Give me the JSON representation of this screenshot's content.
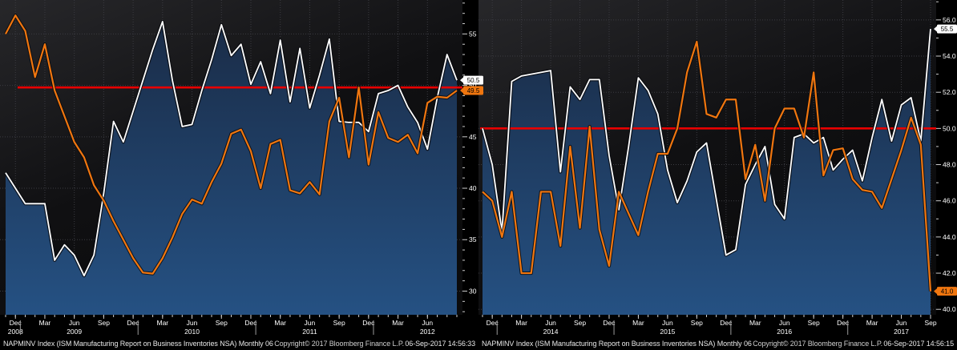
{
  "colors": {
    "background_top": "#27272a",
    "background_bottom": "#0b0b0c",
    "area_top": "#1a2c47",
    "area_bottom": "#255183",
    "grid": "#3b3b41",
    "red_line": "#e80000",
    "white_series": "#ffffff",
    "orange_series": "#f0760f",
    "axis_text": "#ffffff",
    "tick_mark": "#cfcfcf",
    "strip_bg": "#000000",
    "badge_text": "#000000",
    "year_separator": "#9a9a9a"
  },
  "chart_data": [
    {
      "id": "left",
      "type": "line",
      "title": "",
      "grid": true,
      "legend": "none",
      "ylim": [
        27.7,
        58.3
      ],
      "y_ticks": [
        55,
        50,
        45,
        40,
        35,
        30
      ],
      "y_tick_labels": [
        "55",
        "50",
        "45",
        "40",
        "35",
        "30"
      ],
      "y_minor_step": 1,
      "red_reference_line": 49.8,
      "months": [
        "Nov-08",
        "Dec-08",
        "Jan-09",
        "Feb-09",
        "Mar-09",
        "Apr-09",
        "May-09",
        "Jun-09",
        "Jul-09",
        "Aug-09",
        "Sep-09",
        "Oct-09",
        "Nov-09",
        "Dec-09",
        "Jan-10",
        "Feb-10",
        "Mar-10",
        "Apr-10",
        "May-10",
        "Jun-10",
        "Jul-10",
        "Aug-10",
        "Sep-10",
        "Oct-10",
        "Nov-10",
        "Dec-10",
        "Jan-11",
        "Feb-11",
        "Mar-11",
        "Apr-11",
        "May-11",
        "Jun-11",
        "Jul-11",
        "Aug-11",
        "Sep-11",
        "Oct-11",
        "Nov-11",
        "Dec-11",
        "Jan-12",
        "Feb-12",
        "Mar-12",
        "Apr-12",
        "May-12",
        "Jun-12",
        "Jul-12",
        "Aug-12",
        "Sep-12"
      ],
      "series": [
        {
          "name": "white-line",
          "color": "#ffffff",
          "area": true,
          "values": [
            41.5,
            40.0,
            38.5,
            38.5,
            38.5,
            33.0,
            34.5,
            33.5,
            31.5,
            33.5,
            39.5,
            46.5,
            44.5,
            47.5,
            50.5,
            53.5,
            56.2,
            50.5,
            46.0,
            46.2,
            49.5,
            52.5,
            55.9,
            52.9,
            54.0,
            50.1,
            52.3,
            49.2,
            54.4,
            48.4,
            53.6,
            47.8,
            51.0,
            54.5,
            46.5,
            46.4,
            46.4,
            45.5,
            49.2,
            49.5,
            50.0,
            47.9,
            46.4,
            43.8,
            48.8,
            53.0,
            50.5
          ]
        },
        {
          "name": "orange-line",
          "color": "#f0760f",
          "area": false,
          "values": [
            55.0,
            56.8,
            55.3,
            50.8,
            54.0,
            49.5,
            47.0,
            44.5,
            43.0,
            40.3,
            38.8,
            36.8,
            35.0,
            33.2,
            31.8,
            31.7,
            33.2,
            35.2,
            37.5,
            38.9,
            38.5,
            40.6,
            42.4,
            45.3,
            45.7,
            43.6,
            40.0,
            44.3,
            44.7,
            39.8,
            39.5,
            40.6,
            39.4,
            46.5,
            48.8,
            43.0,
            49.8,
            42.3,
            47.4,
            44.9,
            44.5,
            45.2,
            43.4,
            48.3,
            48.9,
            48.8,
            49.5
          ]
        }
      ],
      "last_value_badges": [
        {
          "label": "50.5",
          "fill": "#ffffff"
        },
        {
          "label": "49.5",
          "fill": "#f0760f"
        }
      ],
      "x_tick_quarters": [
        {
          "m": 1,
          "label": "Dec"
        },
        {
          "m": 4,
          "label": "Mar"
        },
        {
          "m": 7,
          "label": "Jun"
        },
        {
          "m": 10,
          "label": "Sep"
        },
        {
          "m": 13,
          "label": "Dec"
        },
        {
          "m": 16,
          "label": "Mar"
        },
        {
          "m": 19,
          "label": "Jun"
        },
        {
          "m": 22,
          "label": "Sep"
        },
        {
          "m": 25,
          "label": "Dec"
        },
        {
          "m": 28,
          "label": "Mar"
        },
        {
          "m": 31,
          "label": "Jun"
        },
        {
          "m": 34,
          "label": "Sep"
        },
        {
          "m": 37,
          "label": "Dec"
        },
        {
          "m": 40,
          "label": "Mar"
        },
        {
          "m": 43,
          "label": "Jun"
        }
      ],
      "year_labels": [
        {
          "m": 1,
          "label": "2008"
        },
        {
          "m": 7,
          "label": "2009"
        },
        {
          "m": 19,
          "label": "2010"
        },
        {
          "m": 31,
          "label": "2011"
        },
        {
          "m": 43,
          "label": "2012"
        }
      ],
      "year_separators_m": [
        1.5,
        13.5,
        25.5,
        37.5
      ],
      "footer": {
        "ticker_line": "NAPMINV Index (ISM Manufacturing Report on Business Inventories NSA)  Monthly 06",
        "copyright": "Copyright© 2017 Bloomberg Finance L.P.",
        "timestamp": "06-Sep-2017 14:56:33"
      }
    },
    {
      "id": "right",
      "type": "line",
      "title": "",
      "grid": true,
      "legend": "none",
      "ylim": [
        39.7,
        57.1
      ],
      "y_ticks": [
        56,
        54,
        52,
        50,
        48,
        46,
        44,
        42,
        40
      ],
      "y_tick_labels": [
        "56.0",
        "54.0",
        "52.0",
        "50.0",
        "48.0",
        "46.0",
        "44.0",
        "42.0",
        "40.0"
      ],
      "y_minor_step": 1,
      "red_reference_line": 50.0,
      "months": [
        "Nov-13",
        "Dec-13",
        "Jan-14",
        "Feb-14",
        "Mar-14",
        "Apr-14",
        "May-14",
        "Jun-14",
        "Jul-14",
        "Aug-14",
        "Sep-14",
        "Oct-14",
        "Nov-14",
        "Dec-14",
        "Jan-15",
        "Feb-15",
        "Mar-15",
        "Apr-15",
        "May-15",
        "Jun-15",
        "Jul-15",
        "Aug-15",
        "Sep-15",
        "Oct-15",
        "Nov-15",
        "Dec-15",
        "Jan-16",
        "Feb-16",
        "Mar-16",
        "Apr-16",
        "May-16",
        "Jun-16",
        "Jul-16",
        "Aug-16",
        "Sep-16",
        "Oct-16",
        "Nov-16",
        "Dec-16",
        "Jan-17",
        "Feb-17",
        "Mar-17",
        "Apr-17",
        "May-17",
        "Jun-17",
        "Jul-17",
        "Aug-17",
        "Sep-17"
      ],
      "series": [
        {
          "name": "white-line",
          "color": "#ffffff",
          "area": true,
          "values": [
            50.0,
            48.0,
            44.3,
            52.6,
            52.9,
            53.0,
            53.1,
            53.2,
            47.6,
            52.3,
            51.6,
            52.7,
            52.7,
            48.5,
            45.5,
            49.0,
            52.8,
            52.1,
            50.8,
            47.7,
            45.9,
            47.1,
            48.7,
            49.2,
            46.1,
            43.0,
            43.3,
            46.9,
            48.0,
            49.0,
            45.8,
            45.0,
            49.5,
            49.7,
            49.2,
            49.5,
            47.7,
            48.3,
            48.8,
            47.1,
            49.5,
            51.6,
            49.3,
            51.3,
            51.7,
            49.3,
            55.5
          ]
        },
        {
          "name": "orange-line",
          "color": "#f0760f",
          "area": false,
          "values": [
            46.5,
            46.0,
            44.0,
            46.5,
            42.0,
            42.0,
            46.5,
            46.5,
            43.5,
            49.0,
            44.5,
            50.1,
            44.4,
            42.4,
            46.5,
            45.3,
            44.1,
            46.5,
            48.6,
            48.6,
            50.0,
            53.1,
            54.8,
            50.8,
            50.6,
            51.6,
            51.6,
            47.2,
            49.1,
            46.0,
            50.0,
            51.1,
            51.1,
            49.5,
            53.1,
            47.4,
            48.8,
            48.9,
            47.2,
            46.6,
            46.5,
            45.6,
            47.2,
            48.8,
            50.6,
            49.1,
            41.0
          ]
        }
      ],
      "last_value_badges": [
        {
          "label": "55.5",
          "fill": "#ffffff"
        },
        {
          "label": "41.0",
          "fill": "#f0760f"
        }
      ],
      "x_tick_quarters": [
        {
          "m": 1,
          "label": "Dec"
        },
        {
          "m": 4,
          "label": "Mar"
        },
        {
          "m": 7,
          "label": "Jun"
        },
        {
          "m": 10,
          "label": "Sep"
        },
        {
          "m": 13,
          "label": "Dec"
        },
        {
          "m": 16,
          "label": "Mar"
        },
        {
          "m": 19,
          "label": "Jun"
        },
        {
          "m": 22,
          "label": "Sep"
        },
        {
          "m": 25,
          "label": "Dec"
        },
        {
          "m": 28,
          "label": "Mar"
        },
        {
          "m": 31,
          "label": "Jun"
        },
        {
          "m": 34,
          "label": "Sep"
        },
        {
          "m": 37,
          "label": "Dec"
        },
        {
          "m": 40,
          "label": "Mar"
        },
        {
          "m": 43,
          "label": "Jun"
        },
        {
          "m": 46,
          "label": "Sep"
        }
      ],
      "year_labels": [
        {
          "m": 7,
          "label": "2014"
        },
        {
          "m": 19,
          "label": "2015"
        },
        {
          "m": 31,
          "label": "2016"
        },
        {
          "m": 43,
          "label": "2017"
        }
      ],
      "year_separators_m": [
        1.5,
        13.5,
        25.5,
        37.5
      ],
      "footer": {
        "ticker_line": "NAPMINV Index (ISM Manufacturing Report on Business Inventories NSA)  Monthly 06",
        "copyright": "Copyright© 2017 Bloomberg Finance L.P.",
        "timestamp": "06-Sep-2017 14:56:15"
      }
    }
  ]
}
